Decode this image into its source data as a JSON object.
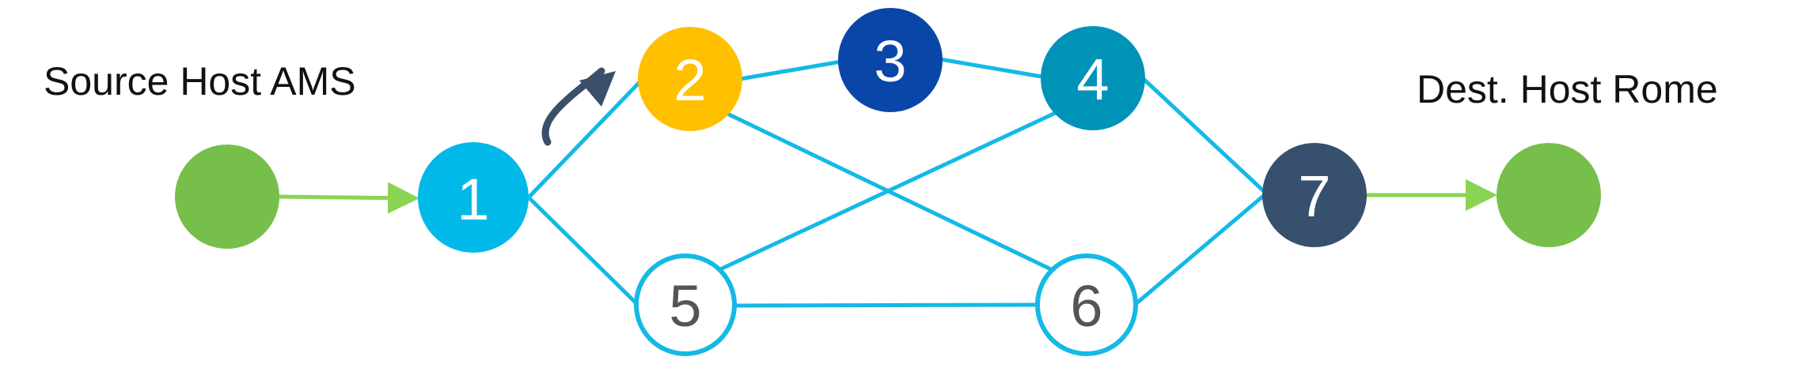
{
  "labels": {
    "source": "Source Host AMS",
    "dest": "Dest. Host Rome"
  },
  "colors": {
    "host": "#76bf4a",
    "host_link": "#8bd352",
    "link": "#14b9e6",
    "path_arrow": "#3b4f68",
    "node_1": "#00b9e8",
    "node_2": "#ffc000",
    "node_3": "#0a46a8",
    "node_4": "#0093b8",
    "node_5": "#ffffff",
    "node_6": "#ffffff",
    "node_7": "#36506e",
    "outline_text": "#555555"
  },
  "nodes": [
    {
      "id": "1",
      "label": "1",
      "style": "filled",
      "fill": "#00b9e8",
      "text": "#ffffff"
    },
    {
      "id": "2",
      "label": "2",
      "style": "filled",
      "fill": "#ffc000",
      "text": "#ffffff"
    },
    {
      "id": "3",
      "label": "3",
      "style": "filled",
      "fill": "#0a46a8",
      "text": "#ffffff"
    },
    {
      "id": "4",
      "label": "4",
      "style": "filled",
      "fill": "#0093b8",
      "text": "#ffffff"
    },
    {
      "id": "5",
      "label": "5",
      "style": "outline",
      "fill": "#ffffff",
      "text": "#555555"
    },
    {
      "id": "6",
      "label": "6",
      "style": "outline",
      "fill": "#ffffff",
      "text": "#555555"
    },
    {
      "id": "7",
      "label": "7",
      "style": "filled",
      "fill": "#36506e",
      "text": "#ffffff"
    }
  ],
  "hosts": [
    {
      "id": "source-host"
    },
    {
      "id": "dest-host"
    }
  ],
  "links": [
    [
      "source-host",
      "1"
    ],
    [
      "1",
      "2"
    ],
    [
      "1",
      "5"
    ],
    [
      "2",
      "3"
    ],
    [
      "3",
      "4"
    ],
    [
      "2",
      "6"
    ],
    [
      "4",
      "5"
    ],
    [
      "5",
      "6"
    ],
    [
      "4",
      "7"
    ],
    [
      "6",
      "7"
    ],
    [
      "7",
      "dest-host"
    ]
  ]
}
